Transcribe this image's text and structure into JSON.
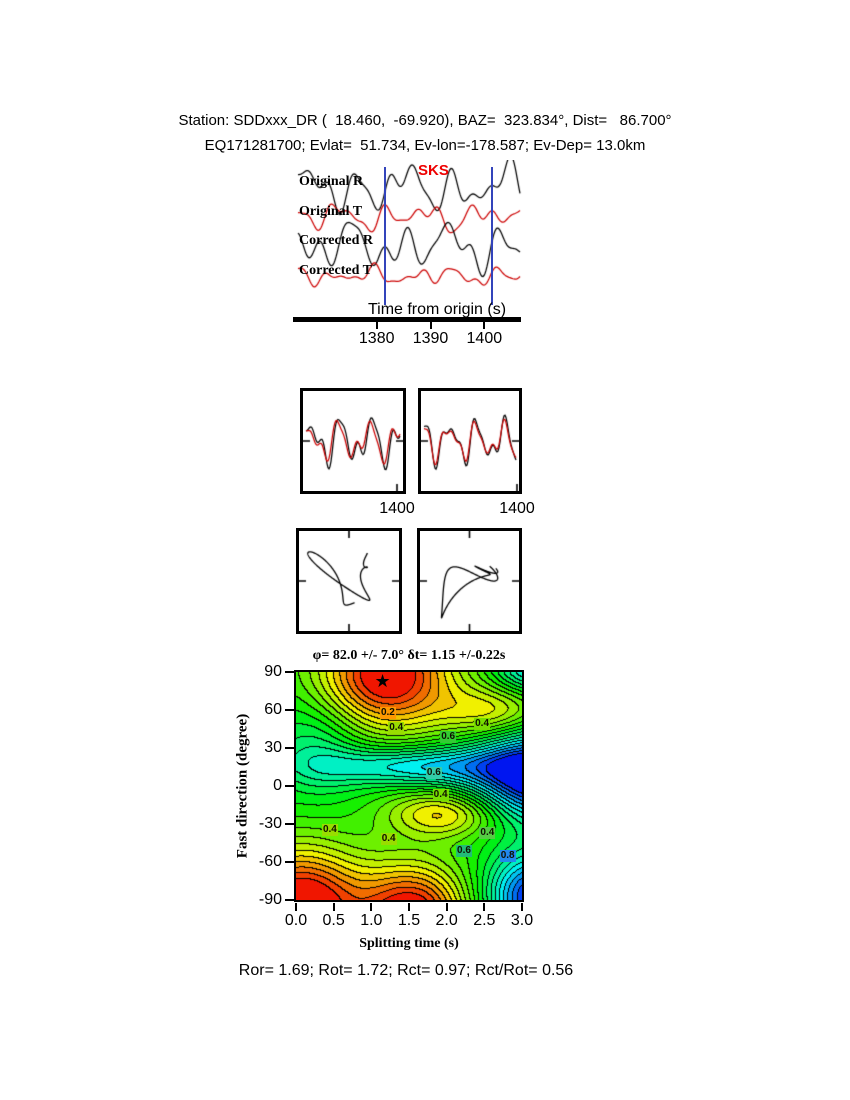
{
  "header": {
    "line1": "Station: SDDxxx_DR (  18.460,  -69.920), BAZ=  323.834°, Dist=   86.700°",
    "line2": "EQ171281700; Evlat=  51.734, Ev-lon=-178.587; Ev-Dep= 13.0km"
  },
  "footer": "Ror= 1.69; Rot= 1.72; Rct= 0.97; Rct/Rot= 0.56",
  "colors": {
    "trace_radial": "#000000",
    "trace_transverse": "#cc0000",
    "phase_label": "#ee0000",
    "window_line": "#3344bb",
    "axis": "#000000"
  },
  "chart_data": [
    {
      "id": "seismograms",
      "type": "line",
      "xlabel": "Time from origin (s)",
      "xlim": [
        1365,
        1407
      ],
      "xticks": [
        1380,
        1390,
        1400
      ],
      "xtick_labels": [
        "1380",
        "1390",
        "1400"
      ],
      "phase_label": "SKS",
      "window_times_s": [
        1381.5,
        1401.5
      ],
      "series": [
        {
          "name": "Original R",
          "color": "#000000",
          "gain": 14,
          "components": [
            {
              "f": 4.5,
              "a": 0.9,
              "p": 0.3
            },
            {
              "f": 7.2,
              "a": 0.7,
              "p": 2.0
            },
            {
              "f": 11.0,
              "a": 0.45,
              "p": 4.2
            },
            {
              "f": 2.2,
              "a": 0.5,
              "p": 1.1
            }
          ]
        },
        {
          "name": "Original T",
          "color": "#cc0000",
          "gain": 9,
          "components": [
            {
              "f": 5.0,
              "a": 0.8,
              "p": 1.7
            },
            {
              "f": 8.1,
              "a": 0.6,
              "p": 0.4
            },
            {
              "f": 12.3,
              "a": 0.35,
              "p": 3.3
            },
            {
              "f": 2.8,
              "a": 0.5,
              "p": 5.0
            }
          ]
        },
        {
          "name": "Corrected R",
          "color": "#000000",
          "gain": 14,
          "components": [
            {
              "f": 4.5,
              "a": 0.95,
              "p": 0.9
            },
            {
              "f": 7.5,
              "a": 0.6,
              "p": 2.8
            },
            {
              "f": 10.2,
              "a": 0.5,
              "p": 1.5
            },
            {
              "f": 2.4,
              "a": 0.55,
              "p": 4.4
            }
          ]
        },
        {
          "name": "Corrected T",
          "color": "#cc0000",
          "gain": 7,
          "components": [
            {
              "f": 5.5,
              "a": 0.7,
              "p": 2.2
            },
            {
              "f": 9.0,
              "a": 0.5,
              "p": 0.8
            },
            {
              "f": 13.0,
              "a": 0.3,
              "p": 4.9
            },
            {
              "f": 3.0,
              "a": 0.45,
              "p": 1.9
            }
          ]
        }
      ]
    },
    {
      "id": "waveform-comparison",
      "type": "line",
      "panels": [
        {
          "xtick": "1400",
          "series": [
            {
              "color": "#000000",
              "gain": 17,
              "components": [
                {
                  "f": 3.1,
                  "a": 1.0,
                  "p": 0.6
                },
                {
                  "f": 5.3,
                  "a": 0.55,
                  "p": 2.4
                },
                {
                  "f": 8.2,
                  "a": 0.35,
                  "p": 4.6
                }
              ]
            },
            {
              "color": "#cc0000",
              "gain": 15,
              "components": [
                {
                  "f": 3.1,
                  "a": 0.95,
                  "p": 1.1
                },
                {
                  "f": 5.3,
                  "a": 0.5,
                  "p": 2.9
                },
                {
                  "f": 8.2,
                  "a": 0.3,
                  "p": 5.1
                }
              ]
            }
          ]
        },
        {
          "xtick": "1400",
          "series": [
            {
              "color": "#000000",
              "gain": 16,
              "components": [
                {
                  "f": 3.4,
                  "a": 1.0,
                  "p": 1.8
                },
                {
                  "f": 5.8,
                  "a": 0.5,
                  "p": 0.3
                },
                {
                  "f": 8.8,
                  "a": 0.3,
                  "p": 3.9
                }
              ]
            },
            {
              "color": "#cc0000",
              "gain": 15,
              "components": [
                {
                  "f": 3.4,
                  "a": 0.9,
                  "p": 1.95
                },
                {
                  "f": 5.8,
                  "a": 0.45,
                  "p": 0.45
                },
                {
                  "f": 8.8,
                  "a": 0.27,
                  "p": 4.05
                }
              ]
            }
          ]
        }
      ]
    },
    {
      "id": "particle-motion",
      "type": "line",
      "panels": [
        {
          "color": "#000000",
          "gain": 24,
          "x_components": [
            {
              "f": 1.0,
              "a": 1.0,
              "p": 0.2
            },
            {
              "f": 2.3,
              "a": 0.55,
              "p": 1.5
            },
            {
              "f": 3.6,
              "a": 0.3,
              "p": 3.1
            }
          ],
          "y_components": [
            {
              "f": 1.5,
              "a": 0.9,
              "p": 1.1
            },
            {
              "f": 2.7,
              "a": 0.5,
              "p": 2.8
            },
            {
              "f": 0.7,
              "a": 0.5,
              "p": 0.4
            }
          ]
        },
        {
          "color": "#000000",
          "gain": 24,
          "x_components": [
            {
              "f": 1.1,
              "a": 1.0,
              "p": 0.5
            },
            {
              "f": 2.2,
              "a": 0.45,
              "p": 2.2
            },
            {
              "f": 3.3,
              "a": 0.3,
              "p": 1.0
            }
          ],
          "y_components": [
            {
              "f": 1.1,
              "a": 0.8,
              "p": 0.8
            },
            {
              "f": 2.4,
              "a": 0.5,
              "p": 2.7
            },
            {
              "f": 3.5,
              "a": 0.3,
              "p": 4.2
            }
          ]
        }
      ]
    },
    {
      "id": "splitting-energy-map",
      "type": "heatmap",
      "title": "φ= 82.0 +/- 7.0° δt= 1.15 +/-0.22s",
      "xlabel": "Splitting time (s)",
      "ylabel": "Fast direction (degree)",
      "xlim": [
        0.0,
        3.0
      ],
      "ylim": [
        -90,
        90
      ],
      "xticks": [
        0.0,
        0.5,
        1.0,
        1.5,
        2.0,
        2.5,
        3.0
      ],
      "xtick_labels": [
        "0.0",
        "0.5",
        "1.0",
        "1.5",
        "2.0",
        "2.5",
        "3.0"
      ],
      "yticks": [
        90,
        60,
        30,
        0,
        -30,
        -60,
        -90
      ],
      "ytick_labels": [
        "90",
        "60",
        "30",
        "0",
        "-30",
        "-60",
        "-90"
      ],
      "best_solution": {
        "fast_direction_deg": 82.0,
        "fast_direction_err_deg": 7.0,
        "splitting_time_s": 1.15,
        "splitting_time_err_s": 0.22,
        "marker": "star"
      },
      "contour_labels": [
        {
          "text": "0.2",
          "x_s": 1.22,
          "y_deg": 58,
          "bg": "#ff9900"
        },
        {
          "text": "0.4",
          "x_s": 1.33,
          "y_deg": 46,
          "bg": "#99dd00"
        },
        {
          "text": "0.4",
          "x_s": 2.47,
          "y_deg": 49,
          "bg": "#77dd00"
        },
        {
          "text": "0.6",
          "x_s": 2.02,
          "y_deg": 39,
          "bg": "#33cc33"
        },
        {
          "text": "0.6",
          "x_s": 1.83,
          "y_deg": 10,
          "bg": "#33ccaa"
        },
        {
          "text": "0.4",
          "x_s": 1.92,
          "y_deg": -7,
          "bg": "#77dd00"
        },
        {
          "text": "0.4",
          "x_s": 0.45,
          "y_deg": -35,
          "bg": "#99dd00"
        },
        {
          "text": "0.4",
          "x_s": 1.23,
          "y_deg": -42,
          "bg": "#99dd00"
        },
        {
          "text": "0.4",
          "x_s": 2.54,
          "y_deg": -37,
          "bg": "#55cc44"
        },
        {
          "text": "0.6",
          "x_s": 2.23,
          "y_deg": -51,
          "bg": "#22bb77"
        },
        {
          "text": "0.8",
          "x_s": 2.81,
          "y_deg": -55,
          "bg": "#2288ee"
        }
      ],
      "field": {
        "base": 0.52,
        "n_levels": 22,
        "gaussians": [
          {
            "x": 1.2,
            "y": 88,
            "sx": 0.62,
            "sy": 30,
            "a": 0.52
          },
          {
            "x": 0.05,
            "y": -95,
            "sx": 0.6,
            "sy": 32,
            "a": 0.55
          },
          {
            "x": 1.55,
            "y": -102,
            "sx": 0.5,
            "sy": 28,
            "a": 0.5
          },
          {
            "x": 1.95,
            "y": -22,
            "sx": 0.52,
            "sy": 13,
            "a": 0.27
          },
          {
            "x": 3.25,
            "y": 8,
            "sx": 0.6,
            "sy": 24,
            "a": -0.6
          },
          {
            "x": 3.2,
            "y": -88,
            "sx": 0.45,
            "sy": 24,
            "a": -0.52
          },
          {
            "x": 1.7,
            "y": 16,
            "sx": 0.95,
            "sy": 11,
            "a": -0.3
          },
          {
            "x": 2.6,
            "y": 60,
            "sx": 0.5,
            "sy": 14,
            "a": 0.22
          },
          {
            "x": 0.25,
            "y": 30,
            "sx": 0.45,
            "sy": 28,
            "a": -0.15
          },
          {
            "x": 3.15,
            "y": 95,
            "sx": 0.35,
            "sy": 14,
            "a": -0.3
          }
        ]
      }
    }
  ]
}
